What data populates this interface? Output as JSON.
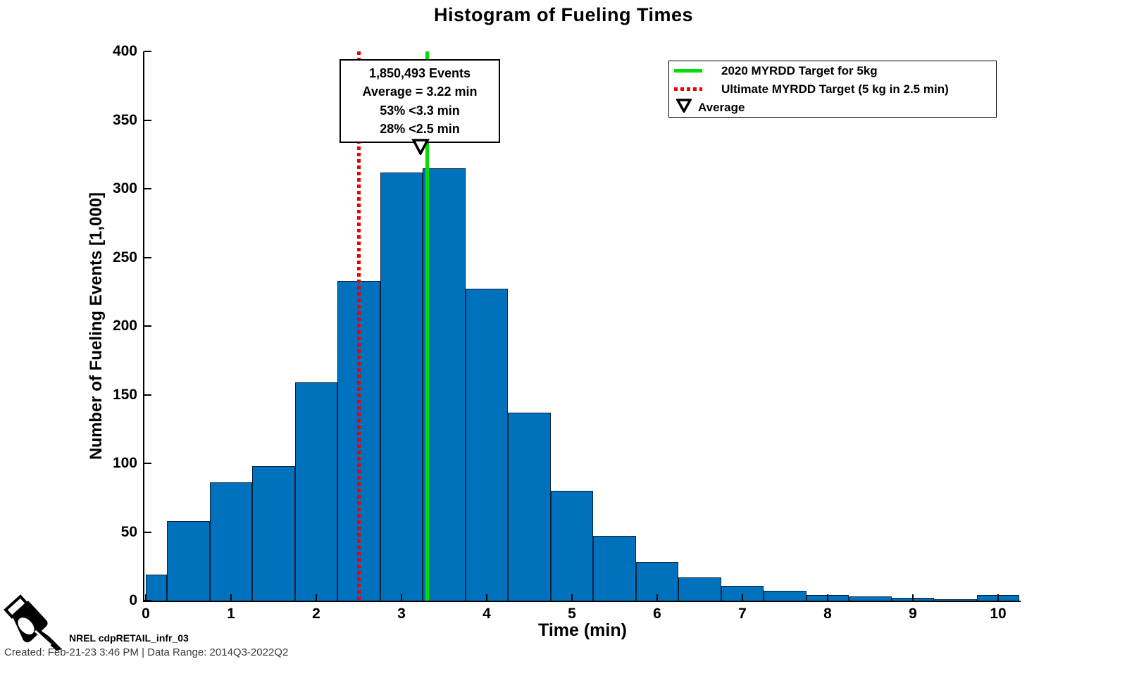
{
  "title": "Histogram of Fueling Times",
  "axes": {
    "xlabel": "Time (min)",
    "ylabel": "Number of Fueling Events [1,000]",
    "x_tick_labels": [
      "0",
      "1",
      "2",
      "3",
      "4",
      "5",
      "6",
      "7",
      "8",
      "9",
      "10"
    ],
    "y_tick_labels": [
      "0",
      "50",
      "100",
      "150",
      "200",
      "250",
      "300",
      "350",
      "400"
    ]
  },
  "chart_data": {
    "type": "bar",
    "subtype": "histogram",
    "title": "Histogram of Fueling Times",
    "xlabel": "Time (min)",
    "ylabel": "Number of Fueling Events [1,000]",
    "xlim": [
      0,
      10.25
    ],
    "ylim": [
      0,
      400
    ],
    "grid": false,
    "bin_width_min": 0.5,
    "bin_edges": [
      0,
      0.25,
      0.75,
      1.25,
      1.75,
      2.25,
      2.75,
      3.25,
      3.75,
      4.25,
      4.75,
      5.25,
      5.75,
      6.25,
      6.75,
      7.25,
      7.75,
      8.25,
      8.75,
      9.25,
      9.75,
      10.25
    ],
    "values_thousands": [
      19,
      58,
      86,
      98,
      159,
      233,
      312,
      315,
      227,
      137,
      80,
      47,
      28,
      17,
      11,
      7,
      4,
      3,
      2,
      1,
      4
    ],
    "bar_color": "#0072BD",
    "overlays": {
      "green_line_x_min": 3.3,
      "red_dotted_line_x_min": 2.5,
      "average_marker_x_min": 3.22
    },
    "legend_position": "upper right"
  },
  "annotation": {
    "lines": [
      "1,850,493 Events",
      "Average = 3.22 min",
      "53% <3.3 min",
      "28% <2.5 min"
    ]
  },
  "legend": {
    "items": [
      {
        "marker": "green-solid-line",
        "color": "#00DE00",
        "label": "2020 MYRDD Target for 5kg"
      },
      {
        "marker": "red-dotted-line",
        "color": "#EC0000",
        "label": "Ultimate MYRDD Target (5 kg in 2.5 min)"
      },
      {
        "marker": "open-triangle-down",
        "color": "#000000",
        "label": "Average"
      }
    ]
  },
  "footer": {
    "logo": "fuel-pump-nozzle",
    "dataset_id": "NREL cdpRETAIL_infr_03",
    "created": "Created: Feb-21-23  3:46 PM | Data Range: 2014Q3-2022Q2"
  },
  "colors": {
    "bar": "#0072BD",
    "bar_edge": "#0a2238",
    "target_green": "#00DE00",
    "target_red": "#EC0000",
    "text": "#000000"
  }
}
